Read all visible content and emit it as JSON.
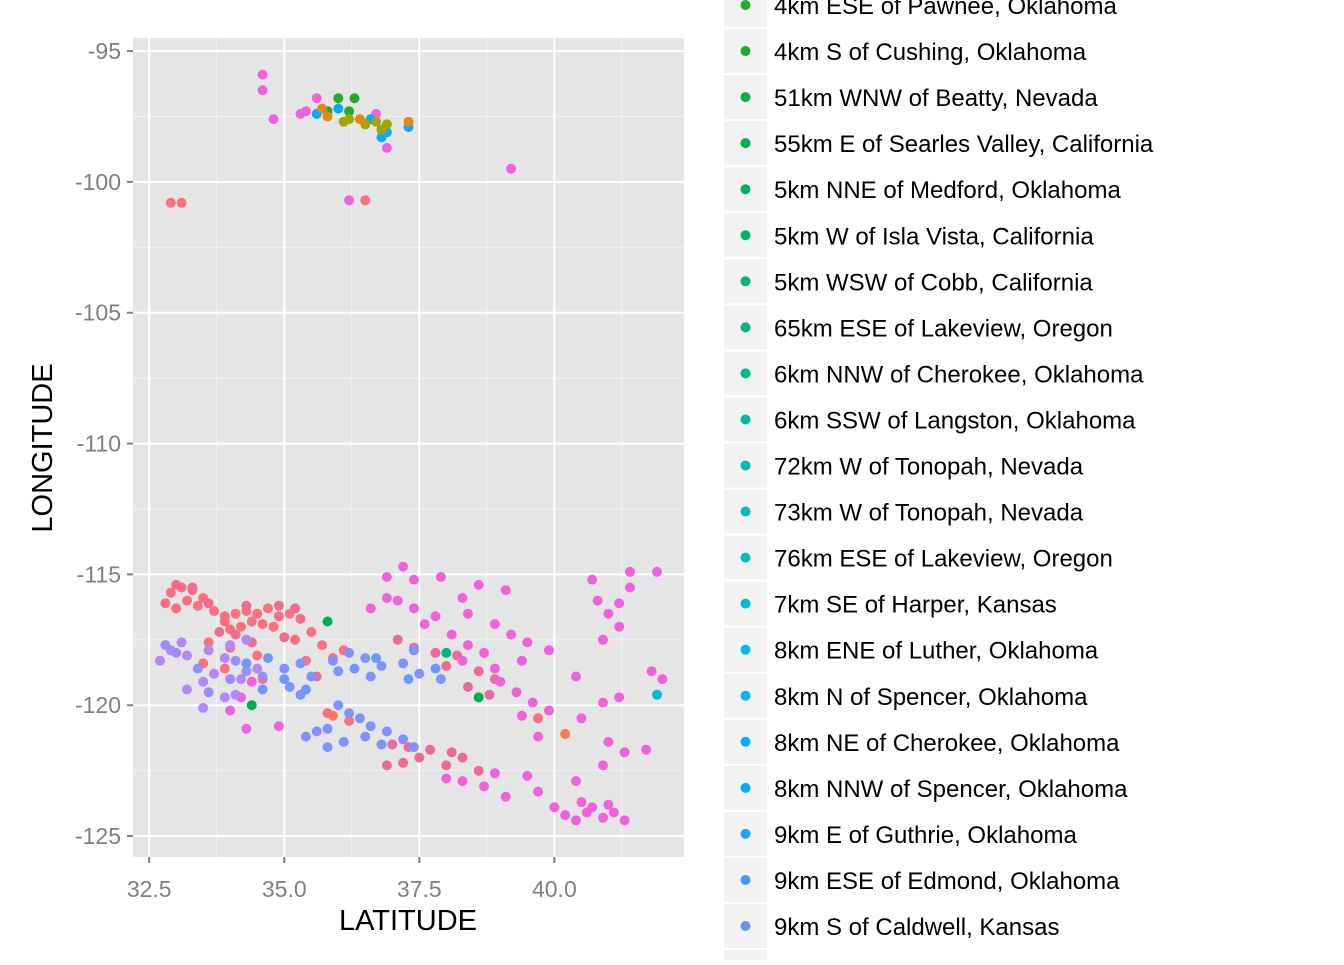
{
  "chart_data": {
    "type": "scatter",
    "xlabel": "LATITUDE",
    "ylabel": "LONGITUDE",
    "xlim": [
      32.2,
      42.4
    ],
    "ylim": [
      -125.8,
      -94.5
    ],
    "x_ticks": [
      32.5,
      35.0,
      37.5,
      40.0
    ],
    "x_tick_labels": [
      "32.5",
      "35.0",
      "37.5",
      "40.0"
    ],
    "y_ticks": [
      -95,
      -100,
      -105,
      -110,
      -115,
      -120,
      -125
    ],
    "y_tick_labels": [
      "-95",
      "-100",
      "-105",
      "-110",
      "-115",
      "-120",
      "-125"
    ],
    "grid": true,
    "panel_background": "#e5e5e5",
    "legend_position": "right",
    "legend": [
      {
        "label": "4km ESE of Pawnee, Oklahoma",
        "color": "#24aa2a"
      },
      {
        "label": "4km S of Cushing, Oklahoma",
        "color": "#1bab35"
      },
      {
        "label": "51km WNW of Beatty, Nevada",
        "color": "#0cad3f"
      },
      {
        "label": "55km E of Searles Valley, California",
        "color": "#00ae4e"
      },
      {
        "label": "5km NNE of Medford, Oklahoma",
        "color": "#00b05c"
      },
      {
        "label": "5km W of Isla Vista, California",
        "color": "#00b269"
      },
      {
        "label": "5km WSW of Cobb, California",
        "color": "#00b576"
      },
      {
        "label": "65km ESE of Lakeview, Oregon",
        "color": "#00b784"
      },
      {
        "label": "6km NNW of Cherokee, Oklahoma",
        "color": "#00b991"
      },
      {
        "label": "6km SSW of Langston, Oklahoma",
        "color": "#00ba9e"
      },
      {
        "label": "72km W of Tonopah, Nevada",
        "color": "#00bcab"
      },
      {
        "label": "73km W of Tonopah, Nevada",
        "color": "#00bdb9"
      },
      {
        "label": "76km ESE of Lakeview, Oregon",
        "color": "#00bdc6"
      },
      {
        "label": "7km SE of Harper, Kansas",
        "color": "#00bcd3"
      },
      {
        "label": "8km ENE of Luther, Oklahoma",
        "color": "#00badf"
      },
      {
        "label": "8km N of Spencer, Oklahoma",
        "color": "#00b7ea"
      },
      {
        "label": "8km NE of Cherokee, Oklahoma",
        "color": "#00b2f3"
      },
      {
        "label": "8km NNW of Spencer, Oklahoma",
        "color": "#00acfb"
      },
      {
        "label": "9km E of Guthrie, Oklahoma",
        "color": "#16a5ff"
      },
      {
        "label": "9km ESE of Edmond, Oklahoma",
        "color": "#3c9dff"
      },
      {
        "label": "9km S of Caldwell, Kansas",
        "color": "#6395ff"
      }
    ],
    "series": [
      {
        "color": "#fb6f7f",
        "points": [
          [
            32.9,
            -115.7
          ],
          [
            33.1,
            -115.5
          ],
          [
            33.3,
            -115.6
          ],
          [
            33.5,
            -115.9
          ],
          [
            33.2,
            -116.0
          ],
          [
            32.8,
            -116.1
          ],
          [
            33.0,
            -116.3
          ],
          [
            33.4,
            -116.2
          ],
          [
            33.7,
            -116.4
          ],
          [
            33.9,
            -116.6
          ],
          [
            34.1,
            -116.5
          ],
          [
            34.3,
            -116.4
          ],
          [
            34.5,
            -116.5
          ],
          [
            34.7,
            -116.3
          ],
          [
            34.9,
            -116.6
          ],
          [
            35.1,
            -116.5
          ],
          [
            34.4,
            -116.8
          ],
          [
            34.2,
            -117.0
          ],
          [
            34.0,
            -117.1
          ],
          [
            33.9,
            -116.8
          ],
          [
            34.6,
            -116.9
          ],
          [
            34.8,
            -117.0
          ],
          [
            35.3,
            -116.7
          ],
          [
            35.5,
            -117.2
          ],
          [
            35.2,
            -117.5
          ],
          [
            35.7,
            -117.7
          ],
          [
            36.1,
            -117.9
          ],
          [
            35.9,
            -118.2
          ],
          [
            35.4,
            -118.3
          ],
          [
            33.6,
            -117.6
          ],
          [
            34.0,
            -117.8
          ],
          [
            34.5,
            -118.1
          ],
          [
            33.9,
            -118.6
          ],
          [
            33.5,
            -118.4
          ],
          [
            34.6,
            -119.0
          ],
          [
            32.9,
            -100.8
          ],
          [
            33.1,
            -100.8
          ],
          [
            36.5,
            -100.7
          ],
          [
            35.8,
            -120.3
          ],
          [
            36.2,
            -120.6
          ],
          [
            39.7,
            -120.5
          ],
          [
            40.2,
            -121.1
          ]
        ]
      },
      {
        "color": "#f16b8f",
        "points": [
          [
            33.0,
            -115.4
          ],
          [
            33.3,
            -115.5
          ],
          [
            33.6,
            -116.1
          ],
          [
            34.3,
            -116.2
          ],
          [
            34.9,
            -116.2
          ],
          [
            35.2,
            -116.3
          ],
          [
            34.1,
            -117.3
          ],
          [
            33.8,
            -117.2
          ],
          [
            34.4,
            -117.6
          ],
          [
            35.0,
            -117.4
          ],
          [
            35.6,
            -118.9
          ]
        ]
      },
      {
        "color": "#ea6b9b",
        "points": [
          [
            37.0,
            -121.5
          ],
          [
            37.3,
            -121.6
          ],
          [
            37.7,
            -121.7
          ],
          [
            38.1,
            -121.8
          ],
          [
            37.5,
            -122.0
          ],
          [
            38.0,
            -122.3
          ],
          [
            38.3,
            -122.0
          ],
          [
            37.2,
            -122.2
          ],
          [
            36.9,
            -122.3
          ],
          [
            38.6,
            -122.5
          ],
          [
            37.1,
            -117.5
          ],
          [
            37.4,
            -117.8
          ],
          [
            37.8,
            -118.0
          ],
          [
            38.2,
            -118.1
          ],
          [
            38.0,
            -118.5
          ],
          [
            38.6,
            -118.7
          ],
          [
            38.9,
            -119.0
          ],
          [
            38.4,
            -119.3
          ],
          [
            38.8,
            -119.6
          ]
        ]
      },
      {
        "color": "#f062dd",
        "points": [
          [
            34.6,
            -95.9
          ],
          [
            34.6,
            -96.5
          ],
          [
            34.8,
            -97.6
          ],
          [
            35.4,
            -97.3
          ],
          [
            35.6,
            -96.8
          ],
          [
            36.7,
            -97.4
          ],
          [
            36.9,
            -98.7
          ],
          [
            39.2,
            -99.5
          ],
          [
            37.2,
            -114.7
          ],
          [
            37.4,
            -115.2
          ],
          [
            36.9,
            -115.1
          ],
          [
            37.9,
            -115.1
          ],
          [
            38.6,
            -115.4
          ],
          [
            39.1,
            -115.6
          ],
          [
            38.3,
            -115.9
          ],
          [
            37.1,
            -116.0
          ],
          [
            37.4,
            -116.3
          ],
          [
            37.8,
            -116.6
          ],
          [
            37.6,
            -116.9
          ],
          [
            38.4,
            -116.5
          ],
          [
            38.9,
            -116.9
          ],
          [
            39.2,
            -117.3
          ],
          [
            39.5,
            -117.6
          ],
          [
            39.9,
            -117.9
          ],
          [
            39.4,
            -118.3
          ],
          [
            38.1,
            -117.3
          ],
          [
            38.4,
            -117.7
          ],
          [
            38.7,
            -118.0
          ],
          [
            38.3,
            -118.3
          ],
          [
            38.9,
            -118.6
          ],
          [
            39.0,
            -119.1
          ],
          [
            39.3,
            -119.5
          ],
          [
            39.6,
            -119.9
          ],
          [
            39.9,
            -120.2
          ],
          [
            39.4,
            -120.4
          ],
          [
            39.7,
            -121.2
          ],
          [
            40.5,
            -120.5
          ],
          [
            40.9,
            -119.9
          ],
          [
            41.2,
            -119.7
          ],
          [
            40.4,
            -118.9
          ],
          [
            40.9,
            -117.5
          ],
          [
            41.2,
            -117.0
          ],
          [
            40.8,
            -116.0
          ],
          [
            40.7,
            -115.2
          ],
          [
            41.4,
            -114.9
          ],
          [
            41.9,
            -114.9
          ],
          [
            41.4,
            -115.5
          ],
          [
            41.2,
            -116.1
          ],
          [
            41.0,
            -116.5
          ],
          [
            41.8,
            -118.7
          ],
          [
            42.0,
            -119.0
          ],
          [
            41.0,
            -121.4
          ],
          [
            41.3,
            -121.8
          ],
          [
            41.7,
            -121.7
          ],
          [
            40.9,
            -122.3
          ],
          [
            40.4,
            -122.9
          ],
          [
            39.7,
            -123.3
          ],
          [
            39.1,
            -123.5
          ],
          [
            38.7,
            -123.1
          ],
          [
            38.3,
            -122.9
          ],
          [
            38.0,
            -122.8
          ],
          [
            38.9,
            -122.6
          ],
          [
            39.5,
            -122.7
          ],
          [
            40.0,
            -123.9
          ],
          [
            40.2,
            -124.2
          ],
          [
            40.4,
            -124.4
          ],
          [
            40.6,
            -124.1
          ],
          [
            40.9,
            -124.3
          ],
          [
            41.1,
            -124.1
          ],
          [
            41.3,
            -124.4
          ],
          [
            40.7,
            -123.9
          ],
          [
            41.0,
            -123.8
          ],
          [
            40.5,
            -123.7
          ],
          [
            34.9,
            -120.8
          ],
          [
            34.3,
            -120.9
          ],
          [
            34.0,
            -120.2
          ],
          [
            34.2,
            -119.7
          ],
          [
            34.4,
            -119.1
          ],
          [
            36.6,
            -116.3
          ],
          [
            36.9,
            -115.9
          ],
          [
            35.3,
            -97.4
          ],
          [
            36.2,
            -100.7
          ]
        ]
      },
      {
        "color": "#b287f8",
        "points": [
          [
            32.7,
            -118.3
          ],
          [
            32.9,
            -117.9
          ],
          [
            33.2,
            -118.1
          ],
          [
            33.1,
            -117.6
          ],
          [
            33.6,
            -117.9
          ],
          [
            33.9,
            -118.2
          ],
          [
            34.0,
            -117.7
          ],
          [
            34.3,
            -117.5
          ],
          [
            33.7,
            -118.8
          ],
          [
            33.5,
            -119.1
          ],
          [
            34.2,
            -119.0
          ],
          [
            34.5,
            -118.6
          ],
          [
            33.2,
            -119.4
          ],
          [
            34.1,
            -119.6
          ],
          [
            33.5,
            -120.1
          ],
          [
            33.9,
            -119.7
          ]
        ]
      },
      {
        "color": "#9c8dfd",
        "points": [
          [
            32.8,
            -117.7
          ],
          [
            33.0,
            -118.0
          ],
          [
            34.1,
            -118.3
          ],
          [
            34.3,
            -118.7
          ],
          [
            33.4,
            -118.6
          ],
          [
            34.0,
            -119.0
          ],
          [
            33.6,
            -119.5
          ],
          [
            34.6,
            -118.9
          ]
        ]
      },
      {
        "color": "#7f93ff",
        "points": [
          [
            35.0,
            -118.6
          ],
          [
            35.3,
            -118.4
          ],
          [
            35.5,
            -118.9
          ],
          [
            35.1,
            -119.3
          ],
          [
            35.3,
            -119.6
          ],
          [
            35.9,
            -118.3
          ],
          [
            36.2,
            -118.0
          ],
          [
            36.5,
            -118.2
          ],
          [
            36.8,
            -118.5
          ],
          [
            36.0,
            -118.7
          ],
          [
            36.6,
            -118.9
          ],
          [
            37.2,
            -118.4
          ],
          [
            37.5,
            -118.8
          ],
          [
            37.9,
            -119.0
          ],
          [
            37.4,
            -117.9
          ],
          [
            36.0,
            -120.0
          ],
          [
            36.2,
            -120.3
          ],
          [
            36.4,
            -120.5
          ],
          [
            36.6,
            -120.8
          ],
          [
            36.9,
            -121.0
          ],
          [
            37.2,
            -121.3
          ],
          [
            37.4,
            -121.6
          ],
          [
            36.8,
            -121.5
          ],
          [
            36.5,
            -121.2
          ],
          [
            35.8,
            -120.9
          ],
          [
            36.1,
            -121.4
          ],
          [
            35.6,
            -121.0
          ],
          [
            35.4,
            -121.2
          ],
          [
            35.8,
            -121.6
          ]
        ]
      },
      {
        "color": "#6d97ff",
        "points": [
          [
            34.3,
            -118.4
          ],
          [
            34.6,
            -119.4
          ],
          [
            34.7,
            -118.2
          ],
          [
            35.0,
            -119.0
          ],
          [
            35.4,
            -119.4
          ],
          [
            36.3,
            -118.6
          ],
          [
            36.7,
            -118.2
          ],
          [
            37.3,
            -119.0
          ],
          [
            37.8,
            -118.6
          ]
        ]
      },
      {
        "color": "#00acfb",
        "points": [
          [
            35.6,
            -97.4
          ],
          [
            36.0,
            -97.2
          ],
          [
            36.8,
            -98.3
          ],
          [
            37.3,
            -97.9
          ],
          [
            36.6,
            -97.6
          ]
        ]
      },
      {
        "color": "#16a5ff",
        "points": [
          [
            36.9,
            -98.1
          ]
        ]
      },
      {
        "color": "#00bcd3",
        "points": [
          [
            41.9,
            -119.6
          ]
        ]
      },
      {
        "color": "#00b784",
        "points": [
          [
            38.0,
            -118.0
          ]
        ]
      },
      {
        "color": "#00ae4e",
        "points": [
          [
            35.8,
            -116.8
          ],
          [
            34.4,
            -120.0
          ],
          [
            38.6,
            -119.7
          ]
        ]
      },
      {
        "color": "#24aa2a",
        "points": [
          [
            36.0,
            -96.8
          ],
          [
            36.3,
            -96.8
          ],
          [
            35.8,
            -97.3
          ],
          [
            36.2,
            -97.3
          ]
        ]
      },
      {
        "color": "#a3a500",
        "points": [
          [
            36.2,
            -97.6
          ],
          [
            36.1,
            -97.7
          ],
          [
            36.7,
            -97.7
          ],
          [
            36.9,
            -97.8
          ],
          [
            36.8,
            -98.0
          ],
          [
            36.5,
            -97.8
          ]
        ]
      },
      {
        "color": "#e68613",
        "points": [
          [
            35.7,
            -97.2
          ],
          [
            35.8,
            -97.5
          ],
          [
            37.3,
            -97.7
          ],
          [
            36.4,
            -97.6
          ]
        ]
      },
      {
        "color": "#f47d58",
        "points": [
          [
            40.2,
            -121.1
          ],
          [
            35.9,
            -120.4
          ]
        ]
      }
    ]
  }
}
